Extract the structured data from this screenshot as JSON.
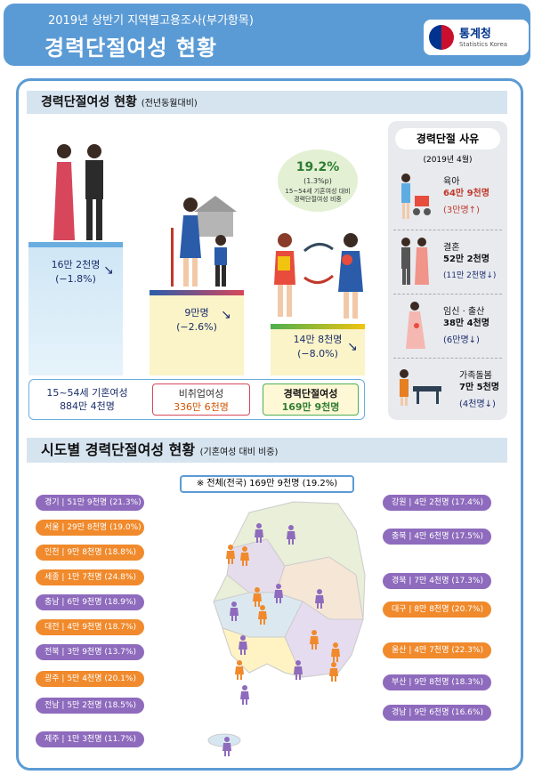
{
  "header": {
    "subtitle": "2019년 상반기 지역별고용조사(부가항목)",
    "title": "경력단절여성 현황",
    "logo_name": "통계청",
    "logo_en": "Statistics Korea"
  },
  "section1": {
    "title": "경력단절여성 현황",
    "note": "(전년동월대비)",
    "married": {
      "value": "16만 2천명",
      "change": "(−1.8%)"
    },
    "nonemployed": {
      "value": "9만명",
      "change": "(−2.6%)"
    },
    "careerbreak": {
      "value": "14만 8천명",
      "change": "(−8.0%)"
    },
    "ratio_bubble": {
      "value": "19.2%",
      "change": "(1.3%p)",
      "desc1": "15~54세 기혼여성 대비",
      "desc2": "경력단절여성 비중"
    },
    "legend": [
      {
        "label": "15~54세 기혼여성",
        "value": "884만 4천명"
      },
      {
        "label": "비취업여성",
        "value": "336만 6천명"
      },
      {
        "label": "경력단절여성",
        "value": "169만 9천명"
      }
    ]
  },
  "reasons": {
    "title": "경력단절 사유",
    "date": "(2019년 4월)",
    "items": [
      {
        "label": "육아",
        "value": "64만 9천명",
        "change": "(3만명↑)"
      },
      {
        "label": "결혼",
        "value": "52만 2천명",
        "change": "(11만 2천명↓)"
      },
      {
        "label": "임신 · 출산",
        "value": "38만 4천명",
        "change": "(6만명↓)"
      },
      {
        "label": "가족돌봄",
        "value": "7만 5천명",
        "change": "(4천명↓)"
      }
    ]
  },
  "section2": {
    "title": "시도별 경력단절여성 현황",
    "note": "(기혼여성 대비 비중)",
    "total": "※ 전체(전국)  169만 9천명 (19.2%)",
    "left": [
      {
        "region": "경기",
        "value": "51만 9천명 (21.3%)",
        "color": "violet"
      },
      {
        "region": "서울",
        "value": "29만 8천명 (19.0%)",
        "color": "orange"
      },
      {
        "region": "인천",
        "value": "9만 8천명 (18.8%)",
        "color": "orange"
      },
      {
        "region": "세종",
        "value": "1만 7천명 (24.8%)",
        "color": "orange"
      },
      {
        "region": "충남",
        "value": "6만 9천명 (18.9%)",
        "color": "violet"
      },
      {
        "region": "대전",
        "value": "4만 9천명 (18.7%)",
        "color": "orange"
      },
      {
        "region": "전북",
        "value": "3만 9천명 (13.7%)",
        "color": "violet"
      },
      {
        "region": "광주",
        "value": "5만 4천명 (20.1%)",
        "color": "orange"
      },
      {
        "region": "전남",
        "value": "5만 2천명 (18.5%)",
        "color": "violet"
      },
      {
        "region": "제주",
        "value": "1만 3천명 (11.7%)",
        "color": "violet"
      }
    ],
    "right": [
      {
        "region": "강원",
        "value": "4만 2천명 (17.4%)",
        "color": "violet"
      },
      {
        "region": "충북",
        "value": "4만 6천명 (17.5%)",
        "color": "violet"
      },
      {
        "region": "경북",
        "value": "7만 4천명 (17.3%)",
        "color": "violet"
      },
      {
        "region": "대구",
        "value": "8만 8천명 (20.7%)",
        "color": "orange"
      },
      {
        "region": "울산",
        "value": "4만 7천명 (22.3%)",
        "color": "orange"
      },
      {
        "region": "부산",
        "value": "9만 8천명 (18.3%)",
        "color": "violet"
      },
      {
        "region": "경남",
        "value": "9만 6천명 (16.6%)",
        "color": "violet"
      }
    ]
  }
}
